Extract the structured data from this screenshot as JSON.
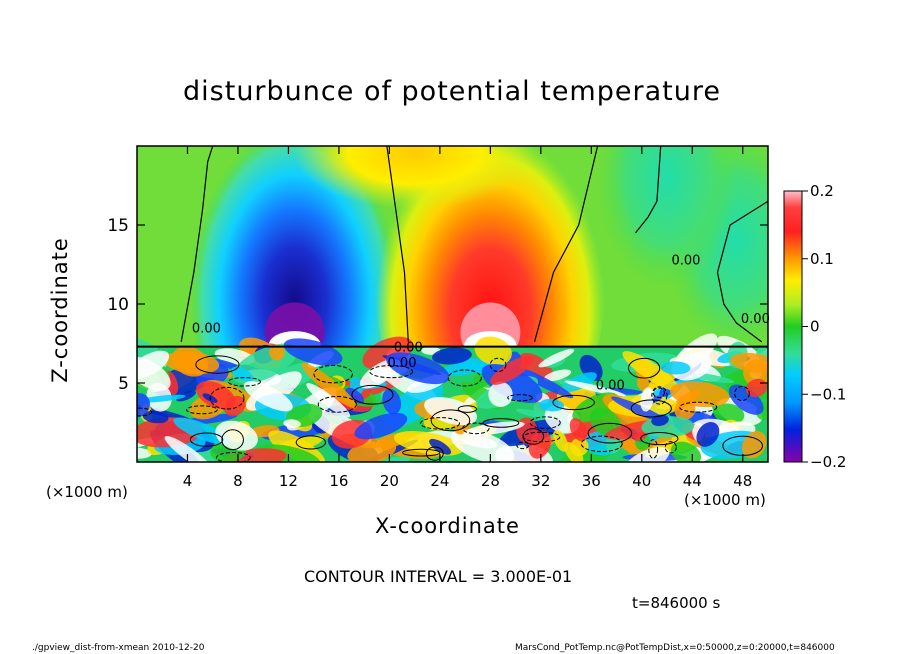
{
  "chart_data": {
    "type": "heatmap",
    "title": "disturbunce of potential temperature",
    "xlabel": "X-coordinate",
    "ylabel": "Z-coordinate",
    "x_unit": "(×1000 m)",
    "x_unit_right": "(×1000 m)",
    "y_unit": "(×1000 m)",
    "xlim": [
      0,
      50
    ],
    "ylim": [
      0,
      20
    ],
    "x_ticks": [
      "4",
      "8",
      "12",
      "16",
      "20",
      "24",
      "28",
      "32",
      "36",
      "40",
      "44",
      "48"
    ],
    "y_ticks": [
      "5",
      "10",
      "15"
    ],
    "colorbar": {
      "ticks": [
        "0.2",
        "0.1",
        "0",
        "−0.1",
        "−0.2"
      ],
      "range": [
        -0.2,
        0.2
      ]
    },
    "contour_labels": [
      "0.00",
      "0.00",
      "0.00",
      "0.00",
      "0.00",
      "0.00"
    ],
    "anomalies": [
      {
        "x": 12.5,
        "z": 11,
        "value": -0.2
      },
      {
        "x": 28,
        "z": 11,
        "value": 0.2
      },
      {
        "x": 47.5,
        "z": 14,
        "value": -0.05
      },
      {
        "x": 22,
        "z": 19.5,
        "value": 0.08
      },
      {
        "x": 42,
        "z": 18,
        "value": -0.05
      }
    ]
  },
  "contour_interval": "CONTOUR INTERVAL = 3.000E-01",
  "time_label": "t=846000 s",
  "footer_left": "./gpview_dist-from-xmean   2010-12-20",
  "footer_right": "MarsCond_PotTemp.nc@PotTempDist,x=0:50000,z=0:20000,t=846000"
}
